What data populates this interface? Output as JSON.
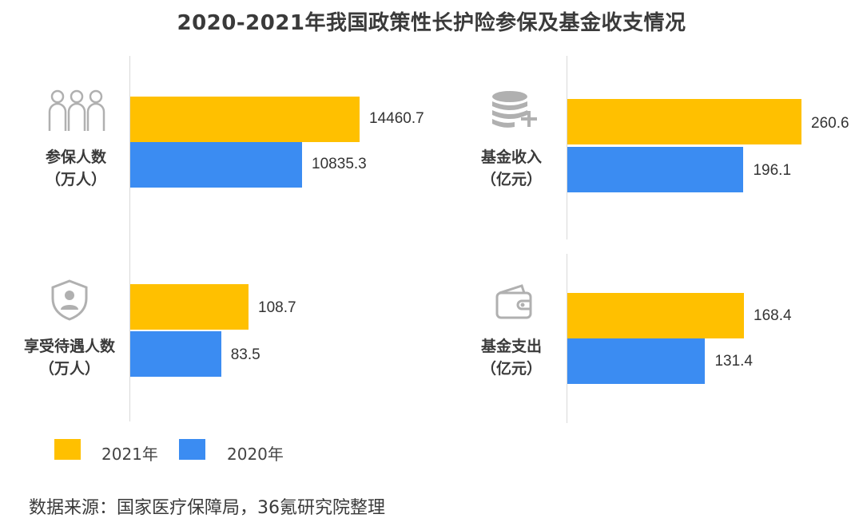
{
  "title": "2020-2021年我国政策性长护险参保及基金收支情况",
  "colors": {
    "y2021": "#ffc000",
    "y2020": "#3b8cf2",
    "icon": "#b0b0b0"
  },
  "legend": [
    {
      "label": "2021年",
      "color": "#ffc000"
    },
    {
      "label": "2020年",
      "color": "#3b8cf2"
    }
  ],
  "source": "数据来源：国家医疗保障局，36氪研究院整理",
  "chart_data": [
    {
      "type": "bar",
      "category_label_line1": "参保人数",
      "category_label_line2": "（万人）",
      "icon": "people-icon",
      "series": [
        {
          "name": "2021年",
          "values": [
            14460.7
          ]
        },
        {
          "name": "2020年",
          "values": [
            10835.3
          ]
        }
      ],
      "value_labels": [
        "14460.7",
        "10835.3"
      ]
    },
    {
      "type": "bar",
      "category_label_line1": "基金收入",
      "category_label_line2": "（亿元）",
      "icon": "coins-plus-icon",
      "series": [
        {
          "name": "2021年",
          "values": [
            260.6
          ]
        },
        {
          "name": "2020年",
          "values": [
            196.1
          ]
        }
      ],
      "value_labels": [
        "260.6",
        "196.1"
      ]
    },
    {
      "type": "bar",
      "category_label_line1": "享受待遇人数",
      "category_label_line2": "（万人）",
      "icon": "shield-person-icon",
      "series": [
        {
          "name": "2021年",
          "values": [
            108.7
          ]
        },
        {
          "name": "2020年",
          "values": [
            83.5
          ]
        }
      ],
      "value_labels": [
        "108.7",
        "83.5"
      ]
    },
    {
      "type": "bar",
      "category_label_line1": "基金支出",
      "category_label_line2": "（亿元）",
      "icon": "wallet-icon",
      "series": [
        {
          "name": "2021年",
          "values": [
            168.4
          ]
        },
        {
          "name": "2020年",
          "values": [
            131.4
          ]
        }
      ],
      "value_labels": [
        "168.4",
        "131.4"
      ]
    }
  ]
}
